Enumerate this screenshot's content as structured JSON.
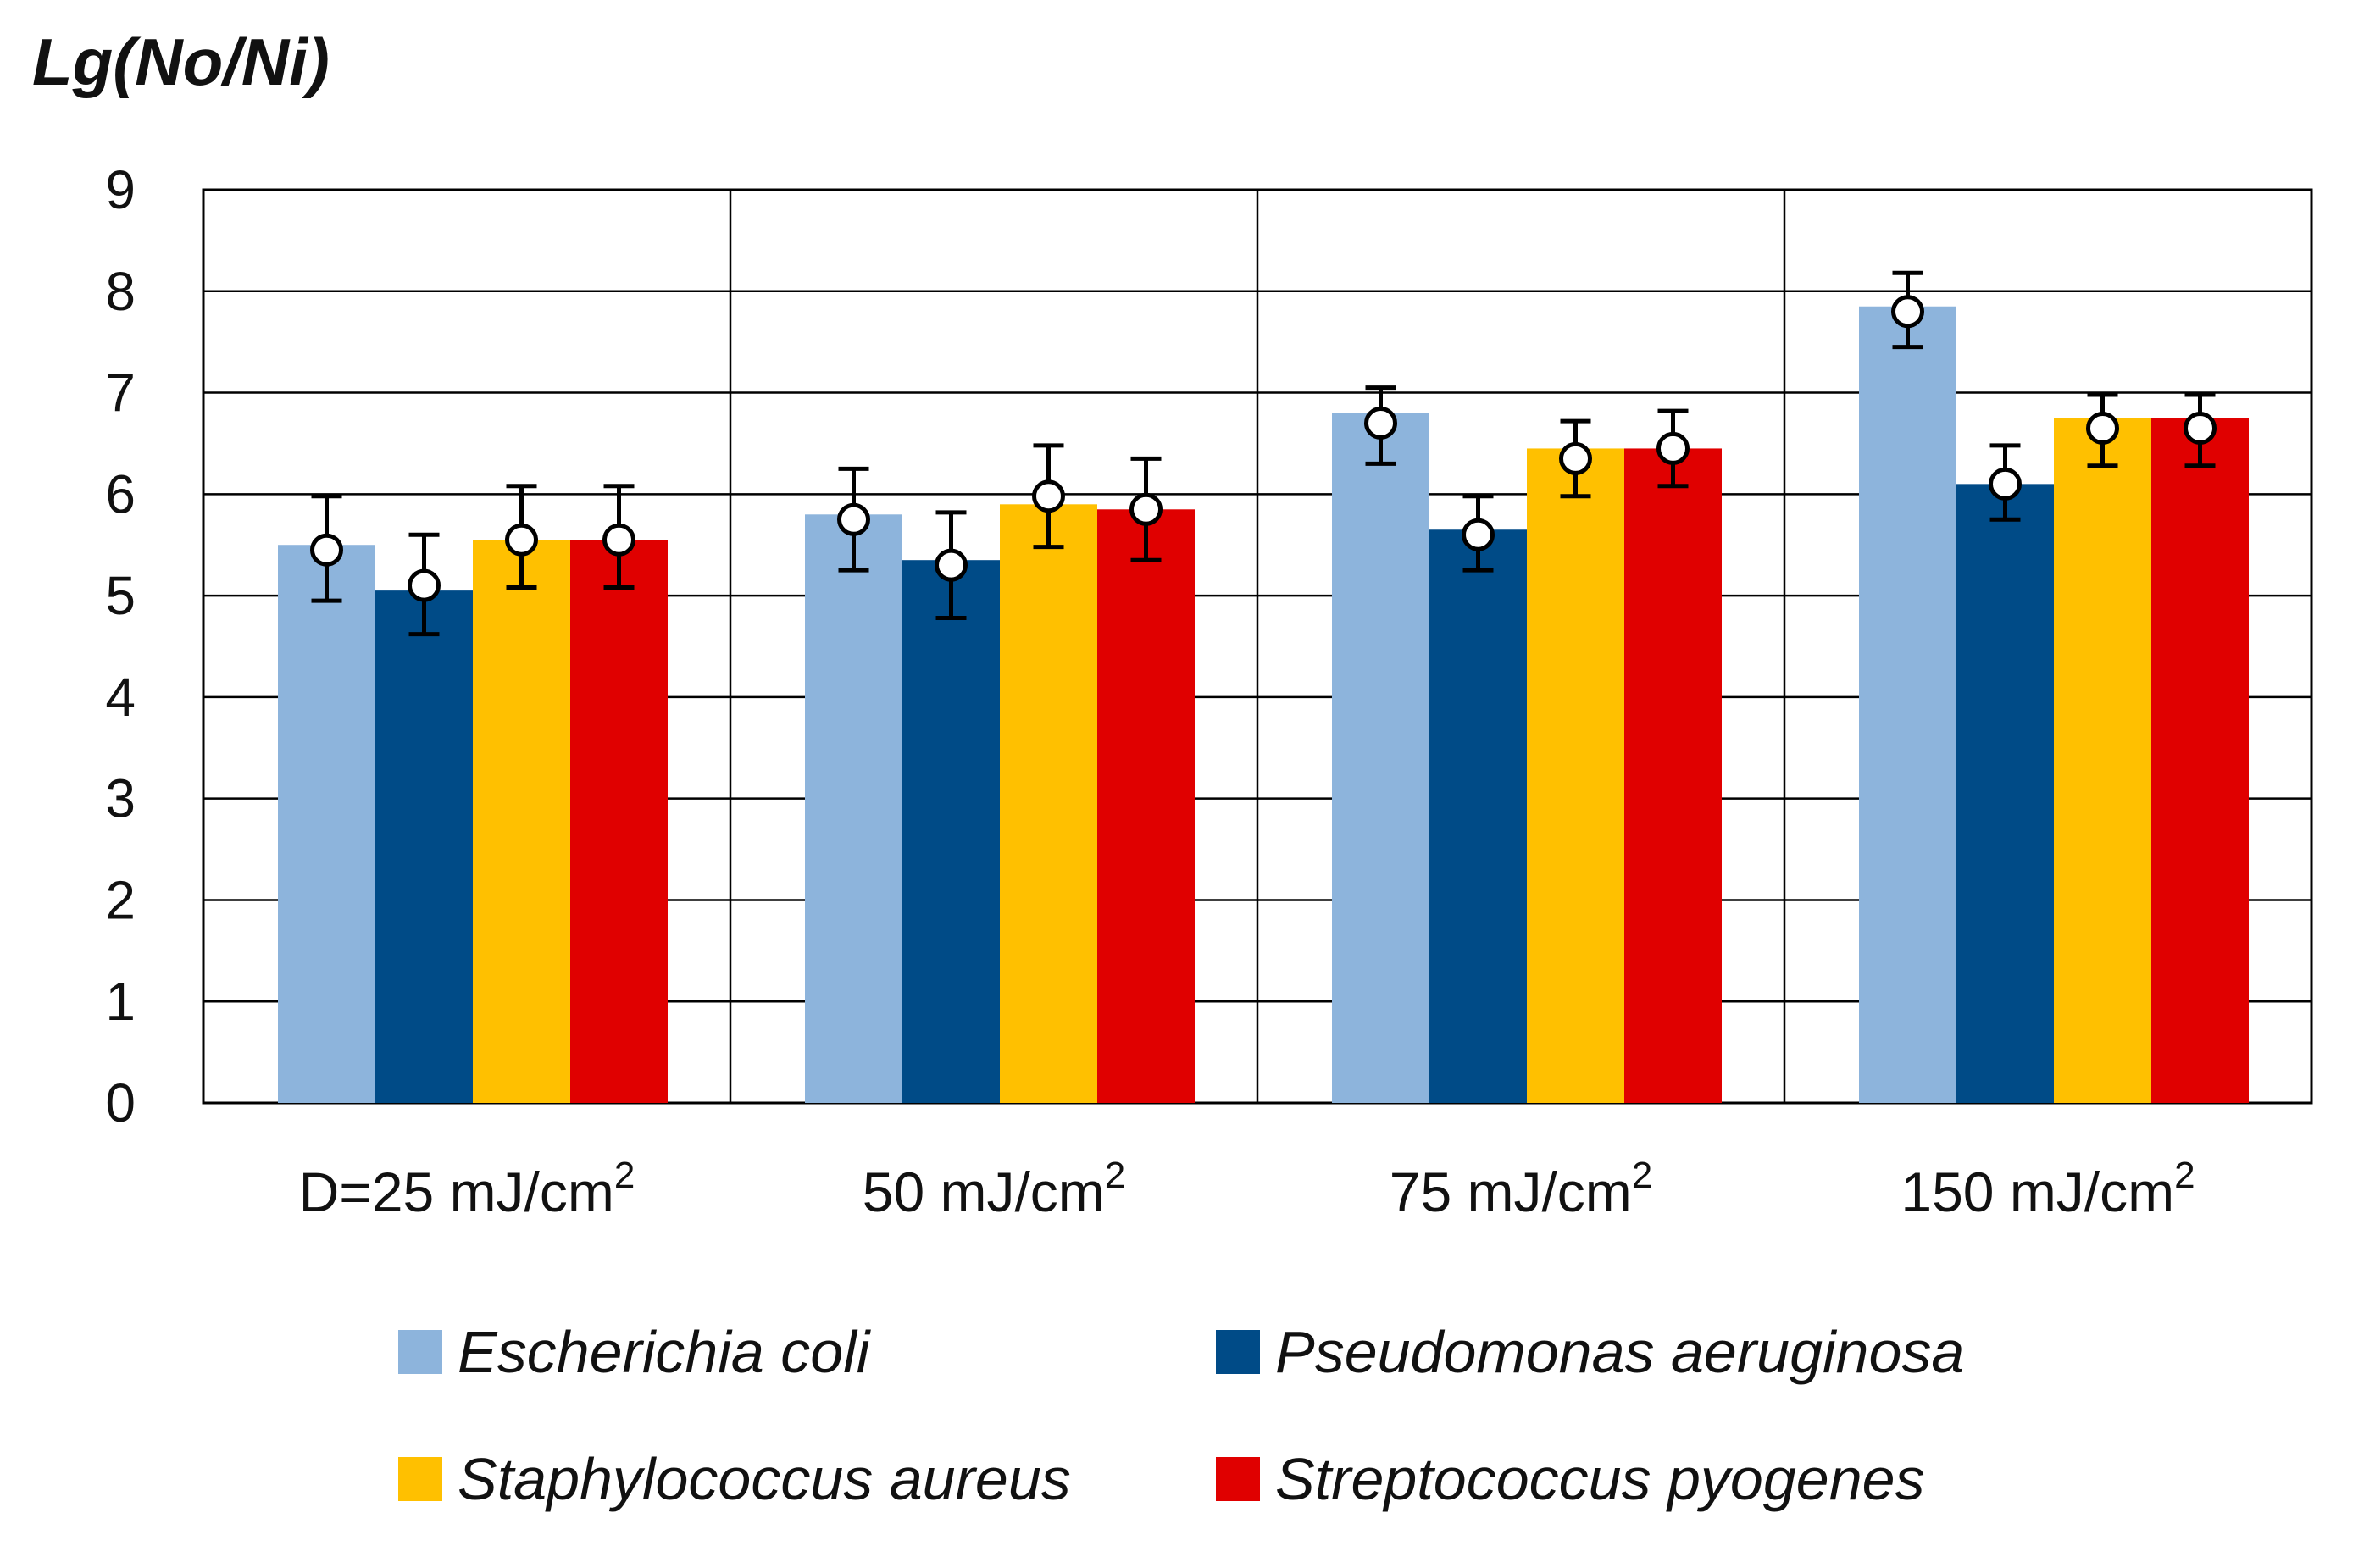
{
  "chart_data": {
    "type": "bar",
    "ylabel": "Lg(No/Ni)",
    "ylim": [
      0,
      9
    ],
    "yticks": [
      "0",
      "1",
      "2",
      "3",
      "4",
      "5",
      "6",
      "7",
      "8",
      "9"
    ],
    "grid": true,
    "legend_position": "bottom",
    "categories": [
      {
        "main": "D=25 mJ/cm",
        "sup": "2"
      },
      {
        "main": "50 mJ/cm",
        "sup": "2"
      },
      {
        "main": "75 mJ/cm",
        "sup": "2"
      },
      {
        "main": "150 mJ/cm",
        "sup": "2"
      }
    ],
    "series": [
      {
        "name": "Escherichia coli",
        "color": "#8db4dc",
        "values": [
          5.5,
          5.8,
          6.8,
          7.85
        ],
        "markers": [
          5.45,
          5.75,
          6.7,
          7.8
        ],
        "err_low": [
          4.95,
          5.25,
          6.3,
          7.45
        ],
        "err_high": [
          5.98,
          6.25,
          7.05,
          8.18
        ]
      },
      {
        "name": "Pseudomonas aeruginosa",
        "color": "#004b87",
        "values": [
          5.05,
          5.35,
          5.65,
          6.1
        ],
        "markers": [
          5.1,
          5.3,
          5.6,
          6.1
        ],
        "err_low": [
          4.62,
          4.78,
          5.25,
          5.75
        ],
        "err_high": [
          5.6,
          5.82,
          5.98,
          6.48
        ]
      },
      {
        "name": "Staphylococcus aureus",
        "color": "#ffc000",
        "values": [
          5.55,
          5.9,
          6.45,
          6.75
        ],
        "markers": [
          5.55,
          5.98,
          6.35,
          6.65
        ],
        "err_low": [
          5.08,
          5.48,
          5.98,
          6.28
        ],
        "err_high": [
          6.08,
          6.48,
          6.72,
          6.98
        ]
      },
      {
        "name": "Streptococcus pyogenes",
        "color": "#e00000",
        "values": [
          5.55,
          5.85,
          6.45,
          6.75
        ],
        "markers": [
          5.55,
          5.85,
          6.45,
          6.65
        ],
        "err_low": [
          5.08,
          5.35,
          6.08,
          6.28
        ],
        "err_high": [
          6.08,
          6.35,
          6.82,
          6.98
        ]
      }
    ]
  }
}
